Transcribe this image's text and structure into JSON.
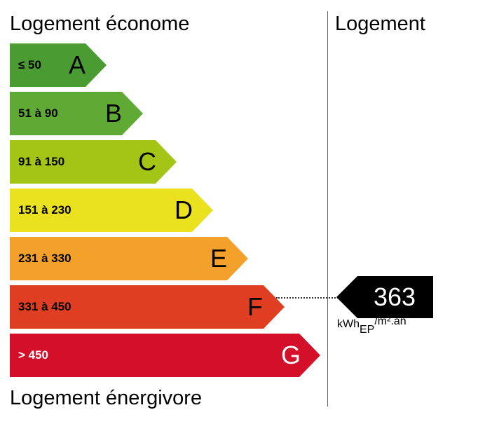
{
  "labels": {
    "top": "Logement économe",
    "bottom": "Logement énergivore",
    "right": "Logement"
  },
  "classes": [
    {
      "letter": "A",
      "range": "≤ 50",
      "color": "#4a9c32",
      "text_color": "#000000"
    },
    {
      "letter": "B",
      "range": "51 à 90",
      "color": "#5faa35",
      "text_color": "#000000"
    },
    {
      "letter": "C",
      "range": "91 à 150",
      "color": "#a2c516",
      "text_color": "#000000"
    },
    {
      "letter": "D",
      "range": "151 à 230",
      "color": "#eae21e",
      "text_color": "#000000"
    },
    {
      "letter": "E",
      "range": "231 à 330",
      "color": "#f3a12a",
      "text_color": "#000000"
    },
    {
      "letter": "F",
      "range": "331 à 450",
      "color": "#e03e23",
      "text_color": "#000000"
    },
    {
      "letter": "G",
      "range": "> 450",
      "color": "#d40f2a",
      "text_color": "#ffffff"
    }
  ],
  "rating": {
    "value": "363",
    "class": "F",
    "unit_main": "kWh",
    "unit_sub": "EP",
    "unit_rest": "/m².an",
    "marker_color": "#000000"
  }
}
